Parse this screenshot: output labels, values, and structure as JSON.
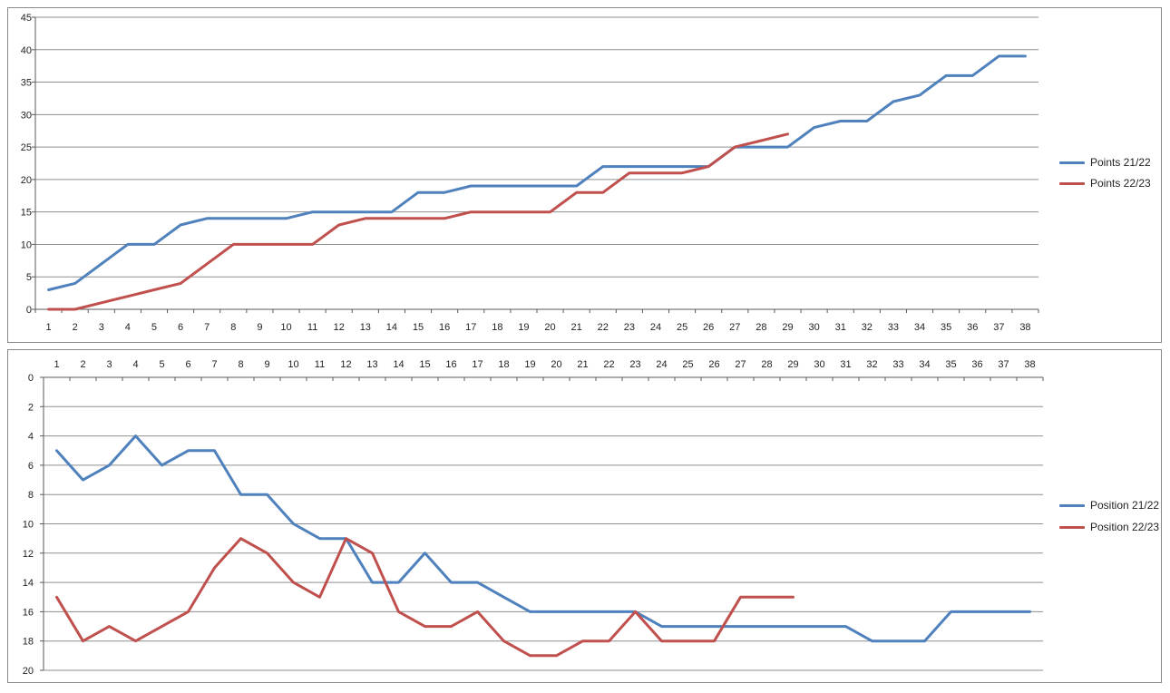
{
  "palette": {
    "series_blue": "#4F81BD",
    "series_red": "#C0504D",
    "gridline": "#8F8F8F",
    "axis": "#5A5A5A",
    "tick_text": "#1F1F1F",
    "chart_border": "#898989",
    "background": "#FFFFFF"
  },
  "chart_data": [
    {
      "type": "line",
      "title": "",
      "xlabel": "",
      "ylabel": "",
      "legend_position": "right",
      "x_axis_position": "bottom",
      "categories": [
        1,
        2,
        3,
        4,
        5,
        6,
        7,
        8,
        9,
        10,
        11,
        12,
        13,
        14,
        15,
        16,
        17,
        18,
        19,
        20,
        21,
        22,
        23,
        24,
        25,
        26,
        27,
        28,
        29,
        30,
        31,
        32,
        33,
        34,
        35,
        36,
        37,
        38
      ],
      "y_axis": {
        "min": 0,
        "max": 45,
        "step": 5,
        "inverted": false
      },
      "y_ticks": [
        "0",
        "5",
        "10",
        "15",
        "20",
        "25",
        "30",
        "35",
        "40",
        "45"
      ],
      "grid": true,
      "series": [
        {
          "name": "Points 21/22",
          "color": "#4F81BD",
          "values": [
            3,
            4,
            7,
            10,
            10,
            13,
            14,
            14,
            14,
            14,
            15,
            15,
            15,
            15,
            18,
            18,
            19,
            19,
            19,
            19,
            19,
            22,
            22,
            22,
            22,
            22,
            25,
            25,
            25,
            28,
            29,
            29,
            32,
            33,
            36,
            36,
            39,
            39
          ]
        },
        {
          "name": "Points 22/23",
          "color": "#C0504D",
          "values": [
            0,
            0,
            1,
            2,
            3,
            4,
            7,
            10,
            10,
            10,
            10,
            13,
            14,
            14,
            14,
            14,
            15,
            15,
            15,
            15,
            18,
            18,
            21,
            21,
            21,
            22,
            25,
            26,
            27
          ]
        }
      ]
    },
    {
      "type": "line",
      "title": "",
      "xlabel": "",
      "ylabel": "",
      "legend_position": "right",
      "x_axis_position": "top",
      "categories": [
        1,
        2,
        3,
        4,
        5,
        6,
        7,
        8,
        9,
        10,
        11,
        12,
        13,
        14,
        15,
        16,
        17,
        18,
        19,
        20,
        21,
        22,
        23,
        24,
        25,
        26,
        27,
        28,
        29,
        30,
        31,
        32,
        33,
        34,
        35,
        36,
        37,
        38
      ],
      "y_axis": {
        "min": 0,
        "max": 20,
        "step": 2,
        "inverted": true
      },
      "y_ticks": [
        "0",
        "2",
        "4",
        "6",
        "8",
        "10",
        "12",
        "14",
        "16",
        "18",
        "20"
      ],
      "grid": true,
      "series": [
        {
          "name": "Position 21/22",
          "color": "#4F81BD",
          "values": [
            5,
            7,
            6,
            4,
            6,
            5,
            5,
            8,
            8,
            10,
            11,
            11,
            14,
            14,
            12,
            14,
            14,
            15,
            16,
            16,
            16,
            16,
            16,
            17,
            17,
            17,
            17,
            17,
            17,
            17,
            17,
            18,
            18,
            18,
            16,
            16,
            16,
            16
          ]
        },
        {
          "name": "Position 22/23",
          "color": "#C0504D",
          "values": [
            15,
            18,
            17,
            18,
            17,
            16,
            13,
            11,
            12,
            14,
            15,
            11,
            12,
            16,
            17,
            17,
            16,
            18,
            19,
            19,
            18,
            18,
            16,
            18,
            18,
            18,
            15,
            15,
            15
          ]
        }
      ]
    }
  ]
}
